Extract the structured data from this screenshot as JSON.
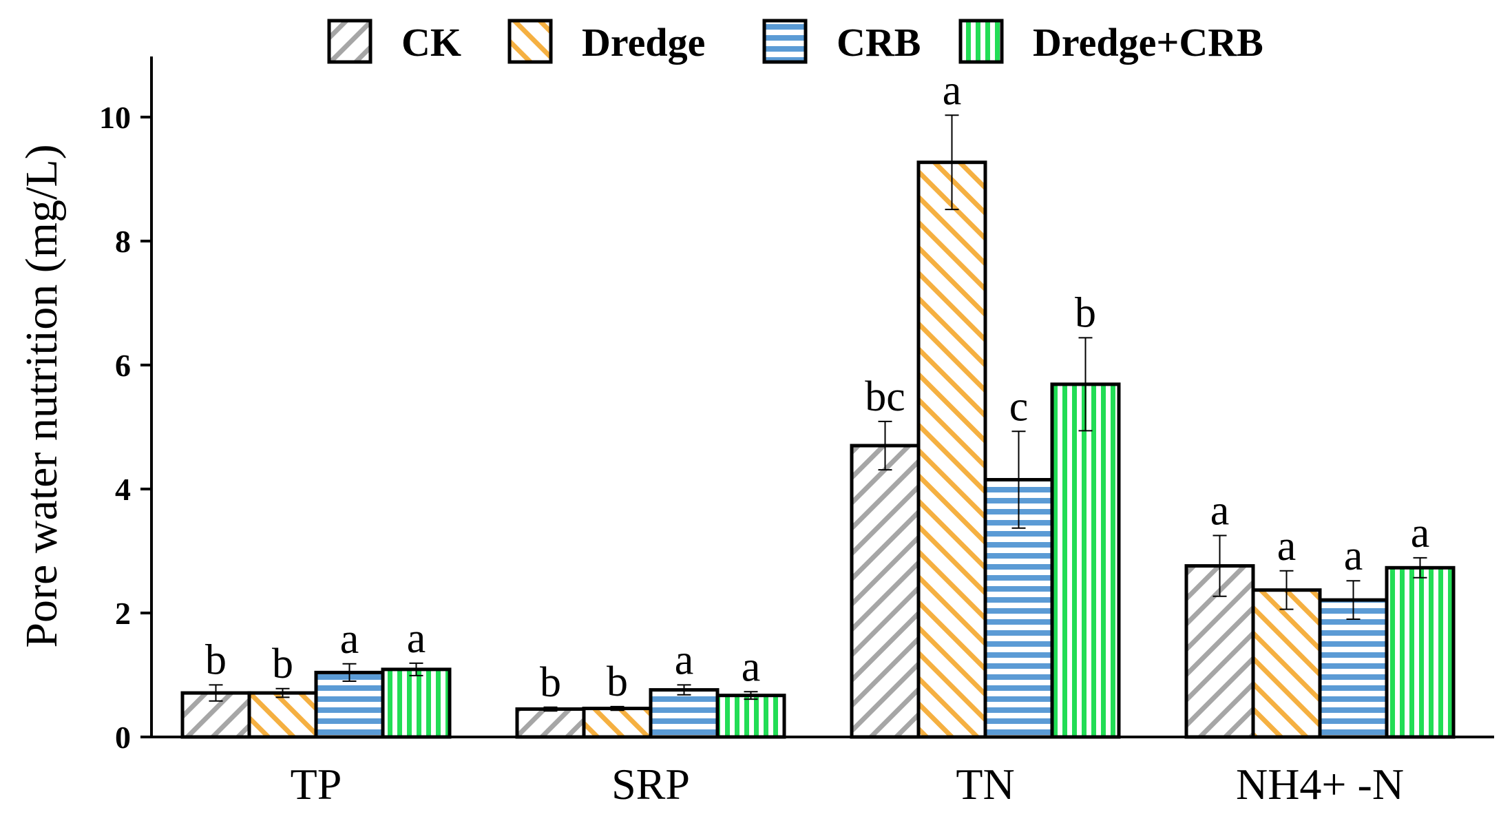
{
  "chart_data": {
    "type": "bar",
    "title": "",
    "xlabel": "",
    "ylabel": "Pore water nutrition (mg/L)",
    "ylim": [
      0,
      11
    ],
    "yticks": [
      0,
      2,
      4,
      6,
      8,
      10
    ],
    "categories": [
      "TP",
      "SRP",
      "TN",
      "NH4+ -N"
    ],
    "series": [
      {
        "name": "CK",
        "color": "#a6a6a6",
        "pattern": "diagonal-up",
        "values": [
          0.71,
          0.45,
          4.7,
          2.76
        ],
        "errors": [
          0.13,
          0.03,
          0.39,
          0.49
        ],
        "labels": [
          "b",
          "b",
          "bc",
          "a"
        ]
      },
      {
        "name": "Dredge",
        "color": "#f5b041",
        "pattern": "diagonal-down",
        "values": [
          0.71,
          0.46,
          9.27,
          2.37
        ],
        "errors": [
          0.07,
          0.03,
          0.76,
          0.31
        ],
        "labels": [
          "b",
          "b",
          "a",
          "a"
        ]
      },
      {
        "name": "CRB",
        "color": "#5b9bd5",
        "pattern": "horizontal",
        "values": [
          1.04,
          0.76,
          4.15,
          2.21
        ],
        "errors": [
          0.14,
          0.08,
          0.78,
          0.31
        ],
        "labels": [
          "a",
          "a",
          "c",
          "a"
        ]
      },
      {
        "name": "Dredge+CRB",
        "color": "#22dd55",
        "pattern": "vertical",
        "values": [
          1.09,
          0.67,
          5.69,
          2.73
        ],
        "errors": [
          0.1,
          0.06,
          0.75,
          0.16
        ],
        "labels": [
          "a",
          "a",
          "b",
          "a"
        ]
      }
    ],
    "legend_position": "top-center"
  }
}
